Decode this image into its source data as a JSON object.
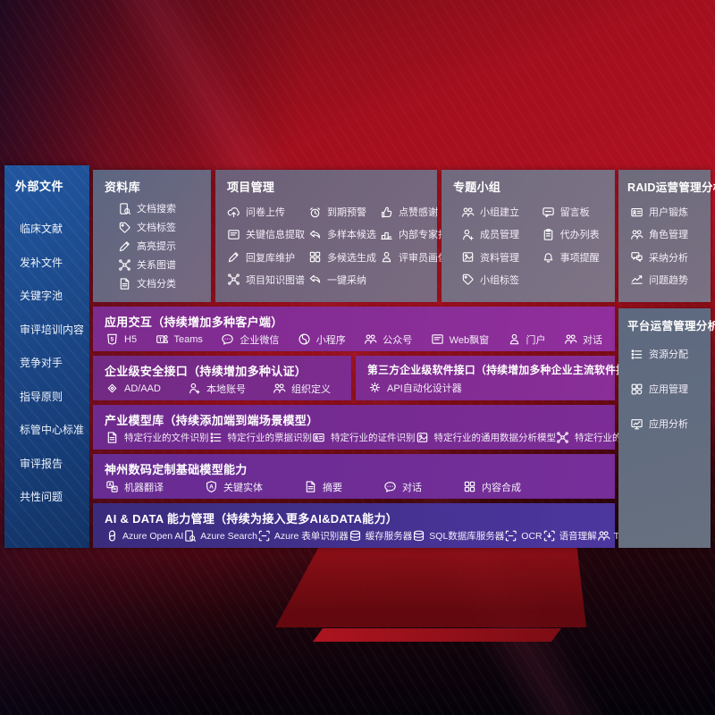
{
  "colors": {
    "background_red": "#a80f1d",
    "sidebar_blue": "#1c4a8c",
    "panel_gray": "#6e6880",
    "row_purple": "#7d2b8f",
    "row_indigo": "#41308c"
  },
  "sidebar": {
    "title": "外部文件",
    "items": [
      {
        "label": "临床文献"
      },
      {
        "label": "发补文件"
      },
      {
        "label": "关键字池"
      },
      {
        "label": "审评培训内容"
      },
      {
        "label": "竞争对手"
      },
      {
        "label": "指导原则"
      },
      {
        "label": "标管中心标准"
      },
      {
        "label": "审评报告"
      },
      {
        "label": "共性问题"
      }
    ]
  },
  "library": {
    "title": "资料库",
    "items": [
      {
        "icon": "doc-search-icon",
        "label": "文档搜索"
      },
      {
        "icon": "doc-tag-icon",
        "label": "文档标签"
      },
      {
        "icon": "highlight-icon",
        "label": "高亮提示"
      },
      {
        "icon": "relation-graph-icon",
        "label": "关系图谱"
      },
      {
        "icon": "doc-category-icon",
        "label": "文档分类"
      }
    ]
  },
  "project": {
    "title": "项目管理",
    "items": [
      {
        "icon": "cloud-upload-icon",
        "label": "问卷上传"
      },
      {
        "icon": "alarm-icon",
        "label": "到期预警"
      },
      {
        "icon": "thumbs-up-icon",
        "label": "点赞感谢"
      },
      {
        "icon": "info-extract-icon",
        "label": "关键信息提取"
      },
      {
        "icon": "multi-sample-icon",
        "label": "多样本候选"
      },
      {
        "icon": "expert-rank-icon",
        "label": "内部专家排名"
      },
      {
        "icon": "reply-maintain-icon",
        "label": "回复库维护"
      },
      {
        "icon": "multi-generate-icon",
        "label": "多候选生成"
      },
      {
        "icon": "reviewer-portrait-icon",
        "label": "评审员画像"
      },
      {
        "icon": "project-graph-icon",
        "label": "项目知识图谱"
      },
      {
        "icon": "one-key-adopt-icon",
        "label": "一键采纳"
      }
    ]
  },
  "topic": {
    "title": "专题小组",
    "items": [
      {
        "icon": "group-create-icon",
        "label": "小组建立"
      },
      {
        "icon": "message-board-icon",
        "label": "留言板"
      },
      {
        "icon": "member-manage-icon",
        "label": "成员管理"
      },
      {
        "icon": "todo-list-icon",
        "label": "代办列表"
      },
      {
        "icon": "material-manage-icon",
        "label": "资料管理"
      },
      {
        "icon": "reminder-bell-icon",
        "label": "事项提醒"
      },
      {
        "icon": "group-tag-icon",
        "label": "小组标签"
      }
    ]
  },
  "raid": {
    "title": "RAID运营管理分析",
    "items": [
      {
        "icon": "user-card-icon",
        "label": "用户锻炼"
      },
      {
        "icon": "role-manage-icon",
        "label": "角色管理"
      },
      {
        "icon": "adopt-analysis-icon",
        "label": "采纳分析"
      },
      {
        "icon": "issue-trend-icon",
        "label": "问题趋势"
      }
    ]
  },
  "platform": {
    "title": "平台运营管理分析",
    "items": [
      {
        "icon": "resource-list-icon",
        "label": "资源分配"
      },
      {
        "icon": "app-manage-icon",
        "label": "应用管理"
      },
      {
        "icon": "app-analysis-icon",
        "label": "应用分析"
      }
    ]
  },
  "interaction": {
    "title": "应用交互（持续增加多种客户端）",
    "items": [
      {
        "icon": "h5-icon",
        "label": "H5"
      },
      {
        "icon": "teams-icon",
        "label": "Teams"
      },
      {
        "icon": "wechat-work-icon",
        "label": "企业微信"
      },
      {
        "icon": "miniprogram-icon",
        "label": "小程序"
      },
      {
        "icon": "official-account-icon",
        "label": "公众号"
      },
      {
        "icon": "web-popup-icon",
        "label": "Web飘窗"
      },
      {
        "icon": "portal-icon",
        "label": "门户"
      },
      {
        "icon": "dialog-icon",
        "label": "对话"
      }
    ]
  },
  "security": {
    "title": "企业级安全接口（持续增加多种认证）",
    "items": [
      {
        "icon": "ad-aad-icon",
        "label": "AD/AAD"
      },
      {
        "icon": "local-account-icon",
        "label": "本地账号"
      },
      {
        "icon": "org-define-icon",
        "label": "组织定义"
      }
    ]
  },
  "thirdparty": {
    "title": "第三方企业级软件接口（持续增加多种企业主流软件接口）",
    "items": [
      {
        "icon": "api-designer-icon",
        "label": "API自动化设计器"
      }
    ]
  },
  "industry": {
    "title": "产业模型库（持续添加端到端场景模型）",
    "items": [
      {
        "icon": "file-recognize-icon",
        "label": "特定行业的文件识别"
      },
      {
        "icon": "ticket-recognize-icon",
        "label": "特定行业的票据识别"
      },
      {
        "icon": "cert-recognize-icon",
        "label": "特定行业的证件识别"
      },
      {
        "icon": "data-analysis-model-icon",
        "label": "特定行业的通用数据分析模型"
      },
      {
        "icon": "knowledge-graph-model-icon",
        "label": "特定行业的通用知识图谱模型"
      }
    ]
  },
  "foundation": {
    "title": "神州数码定制基础模型能力",
    "items": [
      {
        "icon": "translate-icon",
        "label": "机器翻译"
      },
      {
        "icon": "key-entity-icon",
        "label": "关键实体"
      },
      {
        "icon": "summary-icon",
        "label": "摘要"
      },
      {
        "icon": "chat-icon",
        "label": "对话"
      },
      {
        "icon": "content-compose-icon",
        "label": "内容合成"
      }
    ]
  },
  "aidata": {
    "title": "AI & DATA 能力管理（持续为接入更多AI&DATA能力）",
    "items": [
      {
        "icon": "openai-icon",
        "label": "Azure Open AI"
      },
      {
        "icon": "azure-search-icon",
        "label": "Azure Search"
      },
      {
        "icon": "form-recognizer-icon",
        "label": "Azure 表单识别器"
      },
      {
        "icon": "cache-server-icon",
        "label": "缓存服务器"
      },
      {
        "icon": "sql-database-icon",
        "label": "SQL数据库服务器"
      },
      {
        "icon": "ocr-icon",
        "label": "OCR"
      },
      {
        "icon": "speech-understand-icon",
        "label": "语音理解"
      },
      {
        "icon": "tts-icon",
        "label": "TTS"
      }
    ]
  }
}
